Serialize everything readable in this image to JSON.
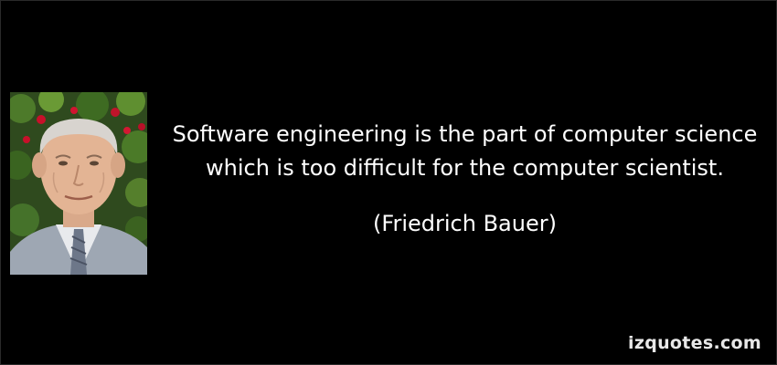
{
  "quote": {
    "text": "Software engineering is the part of computer science\nwhich is too difficult for the computer scientist.",
    "author": "(Friedrich Bauer)"
  },
  "brand": {
    "name": "izquotes.com"
  },
  "photo": {
    "icon": "portrait-photo"
  }
}
